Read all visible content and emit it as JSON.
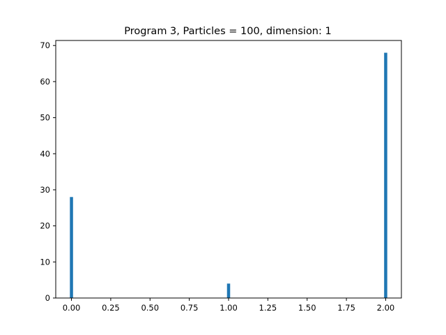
{
  "chart_data": {
    "type": "bar",
    "title": "Program 3, Particles = 100, dimension: 1",
    "xlabel": "",
    "ylabel": "",
    "x": [
      0,
      1,
      2
    ],
    "values": [
      28,
      4,
      68
    ],
    "bar_width": 0.02,
    "xlim": [
      -0.1,
      2.1
    ],
    "ylim": [
      0,
      71.4
    ],
    "xticks": [
      0.0,
      0.25,
      0.5,
      0.75,
      1.0,
      1.25,
      1.5,
      1.75,
      2.0
    ],
    "xtick_labels": [
      "0.00",
      "0.25",
      "0.50",
      "0.75",
      "1.00",
      "1.25",
      "1.50",
      "1.75",
      "2.00"
    ],
    "yticks": [
      0,
      10,
      20,
      30,
      40,
      50,
      60,
      70
    ],
    "ytick_labels": [
      "0",
      "10",
      "20",
      "30",
      "40",
      "50",
      "60",
      "70"
    ],
    "grid": false,
    "bar_color": "#1f77b4"
  }
}
